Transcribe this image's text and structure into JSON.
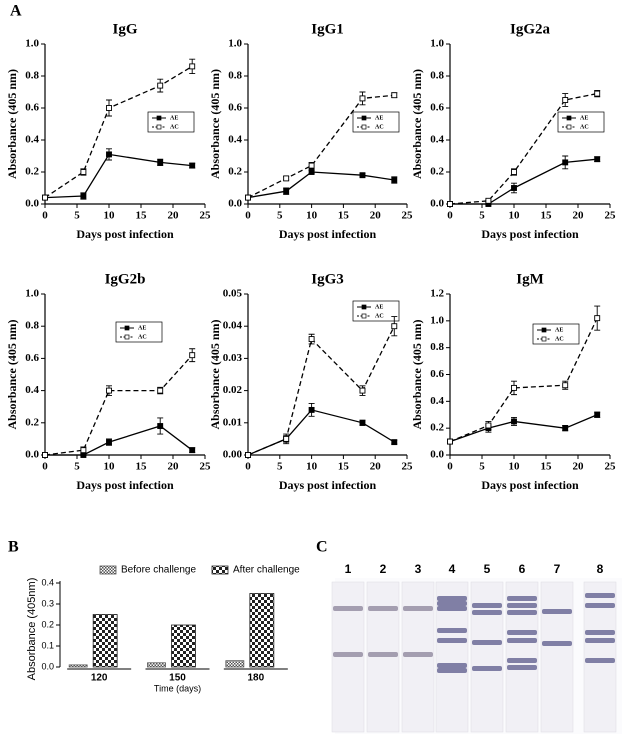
{
  "panel_labels": [
    "A",
    "B",
    "C"
  ],
  "blot": {
    "lanes": [
      "1",
      "2",
      "3",
      "4",
      "5",
      "6",
      "7",
      "8"
    ]
  },
  "chart_data": [
    {
      "type": "line",
      "title": "IgG",
      "xlabel": "Days post infection",
      "ylabel": "Absorbance (405 nm)",
      "x": [
        0,
        6,
        10,
        18,
        23
      ],
      "xlim": [
        0,
        25
      ],
      "xticks": [
        0,
        5,
        10,
        15,
        20,
        25
      ],
      "ylim": [
        0,
        1
      ],
      "yticks": [
        {
          "value": 0,
          "label": "0.0"
        },
        0.2,
        0.4,
        0.6,
        0.8,
        {
          "value": 1,
          "label": "1.0"
        }
      ],
      "series": [
        {
          "name": "AE",
          "color": "#000000",
          "line_style": "solid",
          "marker": "filled",
          "values": [
            0.04,
            0.05,
            0.31,
            0.26,
            0.24
          ],
          "errors": [
            0.01,
            0.02,
            0.035,
            0.02,
            0.015
          ]
        },
        {
          "name": "AC",
          "color": "#000000",
          "line_style": "dashed",
          "marker": "open",
          "values": [
            0.04,
            0.2,
            0.6,
            0.74,
            0.86
          ],
          "errors": [
            0.01,
            0.02,
            0.05,
            0.04,
            0.045
          ]
        }
      ]
    },
    {
      "type": "line",
      "title": "IgG1",
      "xlabel": "Days post infection",
      "ylabel": "Absorbance (405 nm)",
      "x": [
        0,
        6,
        10,
        18,
        23
      ],
      "xlim": [
        0,
        25
      ],
      "xticks": [
        0,
        5,
        10,
        15,
        20,
        25
      ],
      "ylim": [
        0,
        1
      ],
      "yticks": [
        {
          "value": 0,
          "label": "0.0"
        },
        0.2,
        0.4,
        0.6,
        0.8,
        {
          "value": 1,
          "label": "1.0"
        }
      ],
      "series": [
        {
          "name": "AE",
          "color": "#000000",
          "line_style": "solid",
          "marker": "filled",
          "values": [
            0.04,
            0.08,
            0.2,
            0.18,
            0.15
          ],
          "errors": [
            0.005,
            0.02,
            0.01,
            0.01,
            0.02
          ]
        },
        {
          "name": "AC",
          "color": "#000000",
          "line_style": "dashed",
          "marker": "open",
          "values": [
            0.04,
            0.16,
            0.24,
            0.66,
            0.68
          ],
          "errors": [
            0.005,
            0.01,
            0.02,
            0.04,
            0.015
          ]
        }
      ]
    },
    {
      "type": "line",
      "title": "IgG2a",
      "xlabel": "Days post infection",
      "ylabel": "Absorbance (405 nm)",
      "x": [
        0,
        6,
        10,
        18,
        23
      ],
      "xlim": [
        0,
        25
      ],
      "xticks": [
        0,
        5,
        10,
        15,
        20,
        25
      ],
      "ylim": [
        0,
        1
      ],
      "yticks": [
        {
          "value": 0,
          "label": "0.0"
        },
        0.2,
        0.4,
        0.6,
        0.8,
        {
          "value": 1,
          "label": "1.0"
        }
      ],
      "series": [
        {
          "name": "AE",
          "color": "#000000",
          "line_style": "solid",
          "marker": "filled",
          "values": [
            0,
            0,
            0.1,
            0.26,
            0.28
          ],
          "errors": [
            0,
            0.005,
            0.03,
            0.04,
            0.015
          ]
        },
        {
          "name": "AC",
          "color": "#000000",
          "line_style": "dashed",
          "marker": "open",
          "values": [
            0,
            0.02,
            0.2,
            0.65,
            0.69
          ],
          "errors": [
            0,
            0.005,
            0.02,
            0.04,
            0.02
          ]
        }
      ]
    },
    {
      "type": "line",
      "title": "IgG2b",
      "xlabel": "Days post infection",
      "ylabel": "Absorbance (405 nm)",
      "x": [
        0,
        6,
        10,
        18,
        23
      ],
      "xlim": [
        0,
        25
      ],
      "xticks": [
        0,
        5,
        10,
        15,
        20,
        25
      ],
      "ylim": [
        0,
        1
      ],
      "yticks": [
        {
          "value": 0,
          "label": "0.0"
        },
        0.2,
        0.4,
        0.6,
        0.8,
        {
          "value": 1,
          "label": "1.0"
        }
      ],
      "series": [
        {
          "name": "AE",
          "color": "#000000",
          "line_style": "solid",
          "marker": "filled",
          "values": [
            0,
            0,
            0.08,
            0.18,
            0.03
          ],
          "errors": [
            0,
            0.005,
            0.02,
            0.05,
            0.015
          ]
        },
        {
          "name": "AC",
          "color": "#000000",
          "line_style": "dashed",
          "marker": "open",
          "values": [
            0,
            0.03,
            0.4,
            0.4,
            0.62
          ],
          "errors": [
            0,
            0.02,
            0.03,
            0.02,
            0.04
          ]
        }
      ]
    },
    {
      "type": "line",
      "title": "IgG3",
      "xlabel": "Days post infection",
      "ylabel": "Absorbance (405 nm)",
      "x": [
        0,
        6,
        10,
        18,
        23
      ],
      "xlim": [
        0,
        25
      ],
      "xticks": [
        0,
        5,
        10,
        15,
        20,
        25
      ],
      "ylim": [
        0,
        0.05
      ],
      "yticks": [
        {
          "value": 0,
          "label": "0.00"
        },
        0.01,
        0.02,
        0.03,
        0.04,
        0.05
      ],
      "series": [
        {
          "name": "AE",
          "color": "#000000",
          "line_style": "solid",
          "marker": "filled",
          "values": [
            0,
            0.005,
            0.014,
            0.01,
            0.004
          ],
          "errors": [
            0,
            0.001,
            0.002,
            0.0008,
            0.0006
          ]
        },
        {
          "name": "AC",
          "color": "#000000",
          "line_style": "dashed",
          "marker": "open",
          "values": [
            0,
            0.005,
            0.036,
            0.02,
            0.04
          ],
          "errors": [
            0,
            0.0015,
            0.0015,
            0.0015,
            0.003
          ]
        }
      ]
    },
    {
      "type": "line",
      "title": "IgM",
      "xlabel": "Days post infection",
      "ylabel": "Absorbance (405 nm)",
      "x": [
        0,
        6,
        10,
        18,
        23
      ],
      "xlim": [
        0,
        25
      ],
      "xticks": [
        0,
        5,
        10,
        15,
        20,
        25
      ],
      "ylim": [
        0,
        1.2
      ],
      "yticks": [
        {
          "value": 0,
          "label": "0.0"
        },
        0.2,
        0.4,
        0.6,
        0.8,
        {
          "value": 1,
          "label": "1.0"
        },
        1.2
      ],
      "series": [
        {
          "name": "AE",
          "color": "#000000",
          "line_style": "solid",
          "marker": "filled",
          "values": [
            0.1,
            0.2,
            0.25,
            0.2,
            0.3
          ],
          "errors": [
            0.005,
            0.03,
            0.03,
            0.02,
            0.02
          ]
        },
        {
          "name": "AC",
          "color": "#000000",
          "line_style": "dashed",
          "marker": "open",
          "values": [
            0.1,
            0.22,
            0.5,
            0.52,
            1.02
          ],
          "errors": [
            0.005,
            0.03,
            0.05,
            0.03,
            0.09
          ]
        }
      ]
    },
    {
      "type": "bar",
      "xlabel": "Time (days)",
      "ylabel": "Absorbance (405nm)",
      "categories": [
        "120",
        "150",
        "180"
      ],
      "ylim": [
        0,
        0.4
      ],
      "yticks": [
        {
          "value": 0,
          "label": "0.0"
        },
        0.1,
        0.2,
        0.3,
        0.4
      ],
      "series": [
        {
          "name": "Before challenge",
          "color": "#555555",
          "values": [
            0.01,
            0.02,
            0.03
          ]
        },
        {
          "name": "After challenge",
          "color": "#222222",
          "values": [
            0.25,
            0.2,
            0.35
          ]
        }
      ]
    }
  ]
}
